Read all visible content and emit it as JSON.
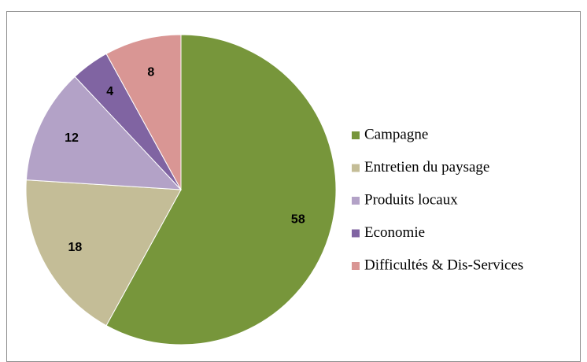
{
  "chart_data": {
    "type": "pie",
    "categories": [
      "Campagne",
      "Entretien du paysage",
      "Produits locaux",
      "Economie",
      "Difficultés & Dis-Services"
    ],
    "values": [
      58,
      18,
      12,
      4,
      8
    ],
    "colors": [
      "#77963b",
      "#c4bd97",
      "#b3a2c7",
      "#8064a2",
      "#d99694"
    ],
    "legend": "right"
  }
}
